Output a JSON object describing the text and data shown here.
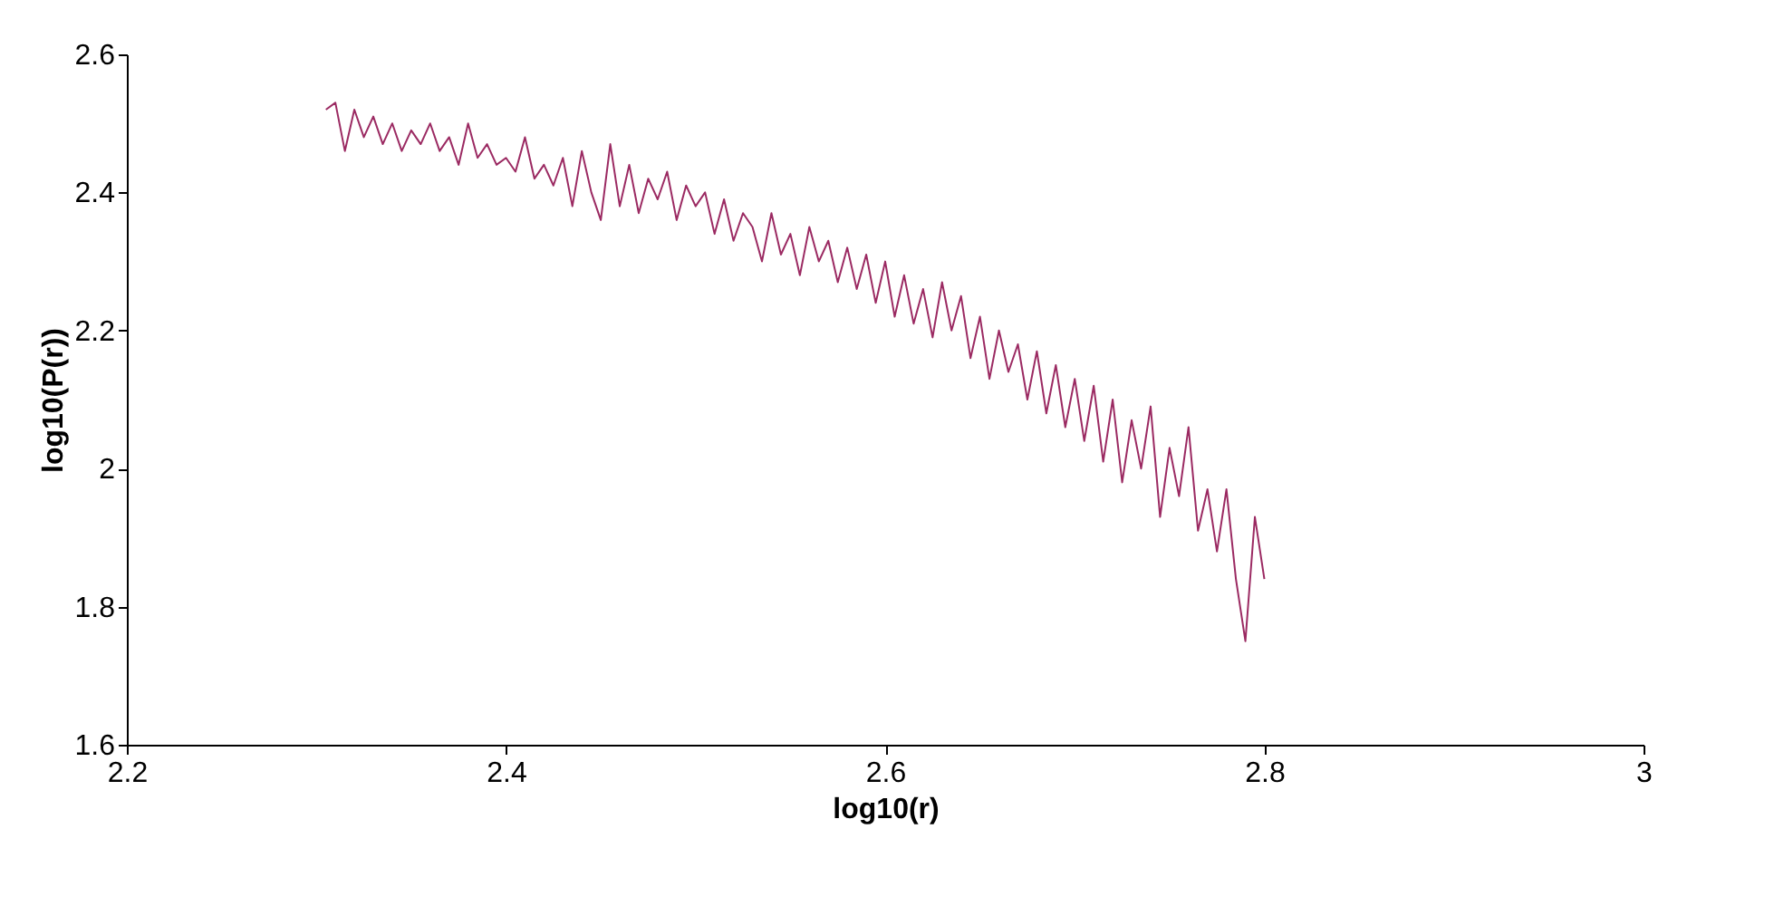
{
  "chart_data": {
    "type": "line",
    "xlabel": "log10(r)",
    "ylabel": "log10(P(r))",
    "xlim": [
      2.2,
      3
    ],
    "xticks": [
      2.2,
      2.4,
      2.6,
      2.8,
      3
    ],
    "ylim": [
      1.6,
      2.6
    ],
    "yticks": [
      1.6,
      1.8,
      2,
      2.2,
      2.4,
      2.6
    ],
    "grid": false,
    "marker": "none",
    "line_style": "solid",
    "series": [
      {
        "color": "#9b2a62",
        "x": [
          2.305,
          2.31,
          2.315,
          2.32,
          2.325,
          2.33,
          2.335,
          2.34,
          2.345,
          2.35,
          2.355,
          2.36,
          2.365,
          2.37,
          2.375,
          2.38,
          2.385,
          2.39,
          2.395,
          2.4,
          2.405,
          2.41,
          2.415,
          2.42,
          2.425,
          2.43,
          2.435,
          2.44,
          2.445,
          2.45,
          2.455,
          2.46,
          2.465,
          2.47,
          2.475,
          2.48,
          2.485,
          2.49,
          2.495,
          2.5,
          2.505,
          2.51,
          2.515,
          2.52,
          2.525,
          2.53,
          2.535,
          2.54,
          2.545,
          2.55,
          2.555,
          2.56,
          2.565,
          2.57,
          2.575,
          2.58,
          2.585,
          2.59,
          2.595,
          2.6,
          2.605,
          2.61,
          2.615,
          2.62,
          2.625,
          2.63,
          2.635,
          2.64,
          2.645,
          2.65,
          2.655,
          2.66,
          2.665,
          2.67,
          2.675,
          2.68,
          2.685,
          2.69,
          2.695,
          2.7,
          2.705,
          2.71,
          2.715,
          2.72,
          2.725,
          2.73,
          2.735,
          2.74,
          2.745,
          2.75,
          2.755,
          2.76,
          2.765,
          2.77,
          2.775,
          2.78,
          2.785,
          2.79,
          2.795,
          2.8
        ],
        "values": [
          2.52,
          2.53,
          2.46,
          2.52,
          2.48,
          2.51,
          2.47,
          2.5,
          2.46,
          2.49,
          2.47,
          2.5,
          2.46,
          2.48,
          2.44,
          2.5,
          2.45,
          2.47,
          2.44,
          2.45,
          2.43,
          2.48,
          2.42,
          2.44,
          2.41,
          2.45,
          2.38,
          2.46,
          2.4,
          2.36,
          2.47,
          2.38,
          2.44,
          2.37,
          2.42,
          2.39,
          2.43,
          2.36,
          2.41,
          2.38,
          2.4,
          2.34,
          2.39,
          2.33,
          2.37,
          2.35,
          2.3,
          2.37,
          2.31,
          2.34,
          2.28,
          2.35,
          2.3,
          2.33,
          2.27,
          2.32,
          2.26,
          2.31,
          2.24,
          2.3,
          2.22,
          2.28,
          2.21,
          2.26,
          2.19,
          2.27,
          2.2,
          2.25,
          2.16,
          2.22,
          2.13,
          2.2,
          2.14,
          2.18,
          2.1,
          2.17,
          2.08,
          2.15,
          2.06,
          2.13,
          2.04,
          2.12,
          2.01,
          2.1,
          1.98,
          2.07,
          2.0,
          2.09,
          1.93,
          2.03,
          1.96,
          2.06,
          1.91,
          1.97,
          1.88,
          1.97,
          1.84,
          1.75,
          1.93,
          1.84
        ]
      }
    ]
  }
}
